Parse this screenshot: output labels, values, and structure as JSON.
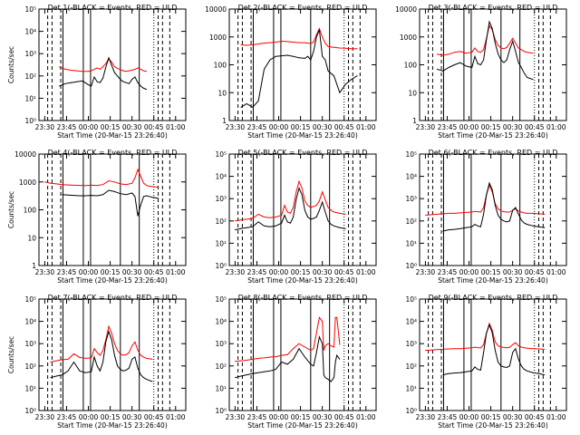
{
  "colors": {
    "events": "#000000",
    "uld": "#ff0000",
    "axes": "#000000",
    "background": "#ffffff"
  },
  "xaxis": {
    "label": "Start Time (20-Mar-15 23:26:40)",
    "ticks": [
      "23:30",
      "23:45",
      "00:00",
      "00:15",
      "00:30",
      "00:45",
      "01:00"
    ]
  },
  "chart_data": [
    {
      "type": "line",
      "title": "Det 1(-BLACK = Events, RED = ULD",
      "ylabel": "Counts/sec",
      "yscale": "log",
      "ylim": [
        1,
        100000
      ],
      "yticks": [
        "10⁰",
        "10¹",
        "10²",
        "10³",
        "10⁴",
        "10⁵"
      ],
      "x": [
        "23:40",
        "23:44",
        "23:48",
        "23:52",
        "23:56",
        "00:00",
        "00:02",
        "00:04",
        "00:06",
        "00:08",
        "00:10",
        "00:12",
        "00:14",
        "00:16",
        "00:18",
        "00:20",
        "00:22",
        "00:24",
        "00:26",
        "00:28",
        "00:30",
        "00:32",
        "00:34",
        "00:36",
        "00:38",
        "00:40"
      ],
      "series": [
        {
          "values": [
            250,
            200,
            180,
            170,
            160,
            160,
            170,
            200,
            230,
            200,
            260,
            360,
            600,
            420,
            260,
            220,
            190,
            170,
            160,
            170,
            180,
            200,
            230,
            200,
            170,
            160
          ]
        },
        {
          "values": [
            35,
            45,
            50,
            55,
            60,
            40,
            35,
            90,
            55,
            50,
            80,
            250,
            650,
            300,
            140,
            100,
            70,
            55,
            50,
            45,
            70,
            90,
            50,
            35,
            28,
            25
          ]
        }
      ]
    },
    {
      "type": "line",
      "title": "Det 2(-BLACK = Events, RED = ULD",
      "ylabel": "",
      "yscale": "log",
      "ylim": [
        1,
        10000
      ],
      "yticks": [
        "1",
        "10",
        "100",
        "1000",
        "10000"
      ],
      "x": [
        "23:34",
        "23:38",
        "23:42",
        "23:46",
        "23:50",
        "23:54",
        "23:58",
        "00:02",
        "00:06",
        "00:10",
        "00:14",
        "00:18",
        "00:20",
        "00:22",
        "00:24",
        "00:26",
        "00:28",
        "00:30",
        "00:32",
        "00:34",
        "00:38",
        "00:42",
        "00:46",
        "00:50",
        "00:54"
      ],
      "series": [
        {
          "values": [
            520,
            500,
            520,
            560,
            600,
            620,
            650,
            700,
            680,
            650,
            620,
            620,
            600,
            580,
            650,
            1200,
            2000,
            1000,
            600,
            450,
            420,
            400,
            390,
            380,
            380
          ]
        },
        {
          "values": [
            3,
            4,
            3,
            5,
            70,
            150,
            200,
            210,
            220,
            200,
            180,
            170,
            200,
            150,
            300,
            1000,
            1800,
            200,
            150,
            60,
            40,
            10,
            20,
            30,
            40
          ]
        }
      ]
    },
    {
      "type": "line",
      "title": "Det 3(-BLACK = Events, RED = ULD",
      "ylabel": "",
      "yscale": "log",
      "ylim": [
        1,
        10000
      ],
      "yticks": [
        "1",
        "10",
        "100",
        "1000",
        "10000"
      ],
      "x": [
        "23:38",
        "23:42",
        "23:46",
        "23:50",
        "23:54",
        "23:58",
        "00:02",
        "00:04",
        "00:06",
        "00:08",
        "00:10",
        "00:12",
        "00:14",
        "00:16",
        "00:18",
        "00:20",
        "00:22",
        "00:24",
        "00:26",
        "00:28",
        "00:30",
        "00:32",
        "00:34",
        "00:36",
        "00:38",
        "00:40",
        "00:44"
      ],
      "series": [
        {
          "values": [
            240,
            220,
            240,
            280,
            300,
            260,
            280,
            400,
            300,
            280,
            350,
            900,
            2500,
            1800,
            800,
            500,
            400,
            380,
            420,
            600,
            900,
            600,
            400,
            350,
            300,
            280,
            260
          ]
        },
        {
          "values": [
            70,
            60,
            80,
            100,
            120,
            90,
            80,
            200,
            110,
            100,
            150,
            800,
            3500,
            2000,
            600,
            250,
            150,
            120,
            150,
            350,
            700,
            300,
            120,
            80,
            50,
            35,
            30
          ]
        }
      ]
    },
    {
      "type": "line",
      "title": "Det 4(-BLACK = Events, RED = ULD",
      "ylabel": "Counts/sec",
      "yscale": "log",
      "ylim": [
        1,
        10000
      ],
      "yticks": [
        "1",
        "10",
        "100",
        "1000",
        "10000"
      ],
      "x": [
        "23:30",
        "23:34",
        "23:38",
        "23:42",
        "23:46",
        "23:50",
        "23:54",
        "23:58",
        "00:02",
        "00:06",
        "00:10",
        "00:14",
        "00:18",
        "00:22",
        "00:26",
        "00:30",
        "00:32",
        "00:34",
        "00:36",
        "00:38",
        "00:40",
        "00:42",
        "00:44",
        "00:48"
      ],
      "series": [
        {
          "values": [
            1000,
            900,
            850,
            800,
            780,
            760,
            750,
            740,
            760,
            750,
            800,
            1100,
            1000,
            850,
            800,
            900,
            1400,
            2800,
            1600,
            900,
            750,
            700,
            680,
            650
          ]
        },
        {
          "values": [
            null,
            null,
            null,
            350,
            340,
            330,
            320,
            320,
            330,
            320,
            350,
            500,
            450,
            380,
            350,
            400,
            300,
            60,
            150,
            300,
            320,
            300,
            280,
            260
          ]
        }
      ]
    },
    {
      "type": "line",
      "title": "Det 5(-BLACK = Events, RED = ULD",
      "ylabel": "",
      "yscale": "log",
      "ylim": [
        1,
        100000
      ],
      "yticks": [
        "10⁰",
        "10¹",
        "10²",
        "10³",
        "10⁴",
        "10⁵"
      ],
      "x": [
        "23:30",
        "23:34",
        "23:38",
        "23:42",
        "23:46",
        "23:50",
        "23:54",
        "23:58",
        "00:02",
        "00:04",
        "00:06",
        "00:08",
        "00:10",
        "00:12",
        "00:14",
        "00:16",
        "00:18",
        "00:20",
        "00:22",
        "00:24",
        "00:26",
        "00:28",
        "00:30",
        "00:32",
        "00:34",
        "00:36",
        "00:38",
        "00:42",
        "00:46"
      ],
      "series": [
        {
          "values": [
            100,
            110,
            120,
            130,
            200,
            150,
            140,
            150,
            180,
            500,
            250,
            220,
            400,
            2000,
            6000,
            3000,
            800,
            500,
            400,
            450,
            500,
            800,
            2000,
            900,
            400,
            300,
            250,
            220,
            200
          ]
        },
        {
          "values": [
            40,
            45,
            50,
            55,
            90,
            60,
            55,
            60,
            80,
            180,
            90,
            80,
            150,
            900,
            3000,
            1500,
            300,
            150,
            120,
            130,
            150,
            300,
            700,
            250,
            100,
            70,
            60,
            50,
            45
          ]
        }
      ]
    },
    {
      "type": "line",
      "title": "Det 6(-BLACK = Events, RED = ULD",
      "ylabel": "",
      "yscale": "log",
      "ylim": [
        1,
        100000
      ],
      "yticks": [
        "10⁰",
        "10¹",
        "10²",
        "10³",
        "10⁴",
        "10⁵"
      ],
      "x": [
        "23:30",
        "23:34",
        "23:38",
        "23:42",
        "23:46",
        "23:50",
        "23:54",
        "23:58",
        "00:02",
        "00:04",
        "00:06",
        "00:08",
        "00:10",
        "00:12",
        "00:14",
        "00:16",
        "00:18",
        "00:20",
        "00:22",
        "00:24",
        "00:26",
        "00:28",
        "00:30",
        "00:32",
        "00:34",
        "00:36",
        "00:38",
        "00:40",
        "00:44",
        "00:48",
        "00:52"
      ],
      "series": [
        {
          "values": [
            180,
            190,
            200,
            210,
            220,
            220,
            230,
            240,
            250,
            270,
            260,
            250,
            400,
            1500,
            4000,
            2000,
            600,
            350,
            280,
            260,
            250,
            250,
            300,
            350,
            280,
            250,
            230,
            220,
            220,
            210,
            200
          ]
        },
        {
          "values": [
            null,
            null,
            null,
            35,
            40,
            42,
            45,
            50,
            55,
            70,
            60,
            55,
            200,
            1500,
            5000,
            2500,
            500,
            180,
            120,
            100,
            90,
            100,
            300,
            400,
            200,
            110,
            80,
            70,
            60,
            55,
            50
          ]
        }
      ]
    },
    {
      "type": "line",
      "title": "Det 7(-BLACK = Events, RED = ULD",
      "ylabel": "Counts/sec",
      "yscale": "log",
      "ylim": [
        1,
        100000
      ],
      "yticks": [
        "10⁰",
        "10¹",
        "10²",
        "10³",
        "10⁴",
        "10⁵"
      ],
      "x": [
        "23:34",
        "23:38",
        "23:42",
        "23:46",
        "23:50",
        "23:54",
        "23:58",
        "00:02",
        "00:04",
        "00:06",
        "00:08",
        "00:10",
        "00:12",
        "00:14",
        "00:16",
        "00:18",
        "00:20",
        "00:22",
        "00:24",
        "00:26",
        "00:28",
        "00:30",
        "00:32",
        "00:34",
        "00:36",
        "00:38",
        "00:40",
        "00:44"
      ],
      "series": [
        {
          "values": [
            150,
            170,
            190,
            200,
            350,
            240,
            220,
            230,
            600,
            400,
            300,
            500,
            1500,
            6000,
            3000,
            1000,
            500,
            350,
            300,
            320,
            400,
            800,
            1200,
            500,
            300,
            250,
            220,
            200
          ]
        },
        {
          "values": [
            30,
            35,
            40,
            60,
            150,
            60,
            50,
            55,
            250,
            100,
            60,
            150,
            1200,
            3500,
            1500,
            300,
            100,
            70,
            60,
            65,
            80,
            200,
            250,
            80,
            40,
            30,
            25,
            20
          ]
        }
      ]
    },
    {
      "type": "line",
      "title": "Det 8(-BLACK = Events, RED = ULD",
      "ylabel": "",
      "yscale": "log",
      "ylim": [
        1,
        100000
      ],
      "yticks": [
        "10⁰",
        "10¹",
        "10²",
        "10³",
        "10⁴",
        "10⁵"
      ],
      "x": [
        "23:30",
        "23:34",
        "23:38",
        "23:42",
        "23:46",
        "23:50",
        "23:54",
        "23:58",
        "00:02",
        "00:06",
        "00:10",
        "00:14",
        "00:18",
        "00:22",
        "00:24",
        "00:26",
        "00:28",
        "00:30",
        "00:31",
        "00:32",
        "00:34",
        "00:36",
        "00:38",
        "00:39",
        "00:40",
        "00:42"
      ],
      "series": [
        {
          "values": [
            160,
            170,
            180,
            200,
            220,
            230,
            250,
            260,
            300,
            320,
            600,
            1000,
            700,
            500,
            600,
            3000,
            15000,
            10000,
            500,
            800,
            1000,
            800,
            700,
            15000,
            15000,
            900
          ]
        },
        {
          "values": [
            30,
            35,
            40,
            45,
            50,
            55,
            60,
            70,
            150,
            120,
            200,
            600,
            250,
            120,
            100,
            400,
            2000,
            1000,
            40,
            30,
            25,
            20,
            30,
            150,
            300,
            200
          ]
        }
      ]
    },
    {
      "type": "line",
      "title": "Det 9(-BLACK = Events, RED = ULD",
      "ylabel": "",
      "yscale": "log",
      "ylim": [
        1,
        100000
      ],
      "yticks": [
        "10⁰",
        "10¹",
        "10²",
        "10³",
        "10⁴",
        "10⁵"
      ],
      "x": [
        "23:30",
        "23:34",
        "23:38",
        "23:42",
        "23:46",
        "23:50",
        "23:54",
        "23:58",
        "00:02",
        "00:04",
        "00:06",
        "00:08",
        "00:10",
        "00:12",
        "00:14",
        "00:16",
        "00:18",
        "00:20",
        "00:22",
        "00:24",
        "00:26",
        "00:28",
        "00:30",
        "00:32",
        "00:34",
        "00:36",
        "00:38",
        "00:40",
        "00:44",
        "00:48",
        "00:52"
      ],
      "series": [
        {
          "values": [
            500,
            520,
            540,
            560,
            580,
            600,
            600,
            620,
            650,
            700,
            660,
            640,
            900,
            3000,
            8000,
            4000,
            1200,
            800,
            700,
            680,
            650,
            680,
            900,
            1100,
            800,
            700,
            650,
            620,
            600,
            580,
            560
          ]
        },
        {
          "values": [
            null,
            null,
            null,
            40,
            45,
            48,
            50,
            55,
            60,
            90,
            70,
            65,
            400,
            3000,
            7000,
            3000,
            500,
            150,
            100,
            90,
            85,
            100,
            400,
            600,
            200,
            100,
            70,
            60,
            50,
            45,
            40
          ]
        }
      ]
    }
  ]
}
